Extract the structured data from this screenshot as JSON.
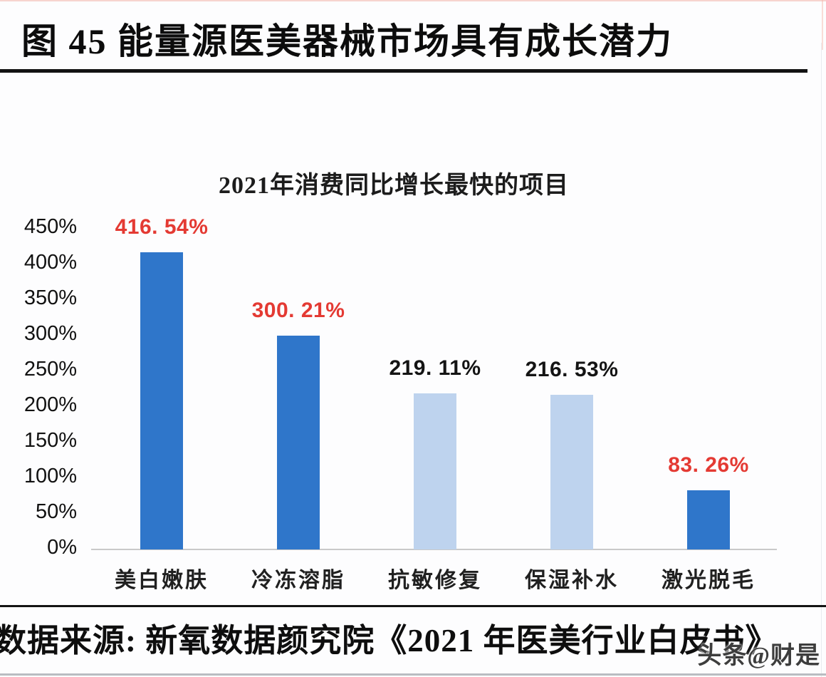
{
  "page": {
    "header_title": "图 45 能量源医美器械市场具有成长潜力",
    "source_line": "数据来源: 新氧数据颜究院《2021 年医美行业白皮书》",
    "watermark": "头条@财是"
  },
  "colors": {
    "bar_dark": "#2f76ca",
    "bar_light": "#bed3ee",
    "value_label_red": "#e43a33",
    "value_label_black": "#141414",
    "axis_line": "#c9c9c9"
  },
  "chart_data": {
    "type": "bar",
    "title": "2021年消费同比增长最快的项目",
    "categories": [
      "美白嫩肤",
      "冷冻溶脂",
      "抗敏修复",
      "保湿补水",
      "激光脱毛"
    ],
    "values": [
      416.54,
      300.21,
      219.11,
      216.53,
      83.26
    ],
    "value_labels": [
      "416. 54%",
      "300. 21%",
      "219. 11%",
      "216. 53%",
      "83. 26%"
    ],
    "value_label_colors": [
      "red",
      "red",
      "black",
      "black",
      "red"
    ],
    "bar_styles": [
      "dark",
      "dark",
      "light",
      "light",
      "dark"
    ],
    "yticks": [
      "450%",
      "400%",
      "350%",
      "300%",
      "250%",
      "200%",
      "150%",
      "100%",
      "50%",
      "0%"
    ],
    "ytick_values": [
      450,
      400,
      350,
      300,
      250,
      200,
      150,
      100,
      50,
      0
    ],
    "ylim": [
      0,
      450
    ],
    "xlabel": "",
    "ylabel": "",
    "grid": false,
    "legend": "none"
  }
}
